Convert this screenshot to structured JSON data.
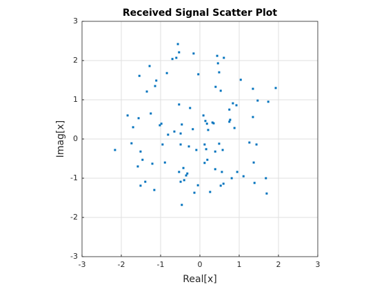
{
  "chart_data": {
    "type": "scatter",
    "title": "Received Signal Scatter Plot",
    "x_label": "Real[x]",
    "y_label": "Imag[x]",
    "x": [
      -0.56,
      -0.53,
      -0.6,
      -0.7,
      -0.16,
      0.44,
      0.61,
      0.46,
      -1.28,
      -0.84,
      -0.04,
      0.49,
      -1.54,
      -1.11,
      -1.14,
      1.04,
      0.53,
      0.4,
      -1.35,
      1.35,
      1.93,
      1.74,
      1.47,
      -0.53,
      -0.25,
      0.84,
      0.93,
      0.09,
      0.75,
      -1.25,
      -1.84,
      -1.56,
      1.35,
      -0.98,
      -1.02,
      0.18,
      0.14,
      0.35,
      0.32,
      0.75,
      0.77,
      0.88,
      -1.7,
      -0.46,
      0.21,
      -0.18,
      -0.65,
      -0.49,
      -0.81,
      -1.74,
      -0.95,
      -0.28,
      -0.49,
      0.12,
      0.49,
      0.58,
      1.26,
      1.44,
      -2.16,
      -1.51,
      -0.09,
      0.16,
      0.39,
      -1.46,
      0.19,
      0.12,
      -0.89,
      -1.21,
      1.37,
      -1.58,
      -0.42,
      -0.35,
      -0.32,
      -0.53,
      0.39,
      0.56,
      0.95,
      0.81,
      1.11,
      1.68,
      -0.49,
      -0.4,
      -1.39,
      -1.51,
      -0.05,
      0.6,
      0.53,
      1.39,
      -1.16,
      -0.14,
      0.26,
      1.7,
      -0.46
    ],
    "y": [
      2.42,
      2.21,
      2.07,
      2.04,
      2.18,
      2.12,
      2.07,
      1.93,
      1.86,
      1.68,
      1.65,
      1.7,
      1.61,
      1.49,
      1.35,
      1.51,
      1.23,
      1.33,
      1.21,
      1.28,
      1.3,
      0.95,
      0.98,
      0.88,
      0.79,
      0.91,
      0.86,
      0.6,
      0.75,
      0.65,
      0.6,
      0.53,
      0.56,
      0.39,
      0.35,
      0.39,
      0.46,
      0.4,
      0.42,
      0.44,
      0.49,
      0.28,
      0.3,
      0.37,
      0.23,
      0.25,
      0.19,
      0.14,
      0.11,
      -0.11,
      -0.14,
      -0.19,
      -0.14,
      -0.14,
      -0.12,
      -0.28,
      -0.09,
      -0.14,
      -0.28,
      -0.32,
      -0.28,
      -0.26,
      -0.32,
      -0.53,
      -0.53,
      -0.61,
      -0.6,
      -0.63,
      -0.6,
      -0.7,
      -0.74,
      -0.93,
      -0.88,
      -0.84,
      -0.77,
      -0.84,
      -0.84,
      -1.0,
      -0.95,
      -1.0,
      -1.09,
      -1.05,
      -1.09,
      -1.19,
      -1.18,
      -1.14,
      -1.19,
      -1.12,
      -1.3,
      -1.37,
      -1.35,
      -1.39,
      -1.68
    ],
    "color": "#0072bd",
    "xlim": [
      -3,
      3
    ],
    "ylim": [
      -3,
      3
    ],
    "xticks": [
      -3,
      -2,
      -1,
      0,
      1,
      2,
      3
    ],
    "yticks": [
      -3,
      -2,
      -1,
      0,
      1,
      2,
      3
    ],
    "grid": true
  }
}
